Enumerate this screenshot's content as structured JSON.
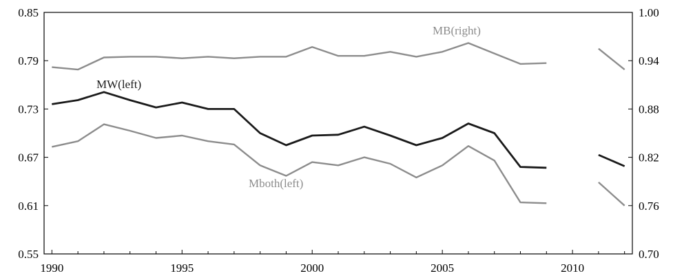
{
  "chart_data": {
    "type": "line",
    "x_ticks": [
      "1990",
      "1995",
      "2000",
      "2005",
      "2010"
    ],
    "x_range": [
      1989.7,
      2012.3
    ],
    "left_axis": {
      "ticks": [
        "0.85",
        "0.79",
        "0.73",
        "0.67",
        "0.61",
        "0.55"
      ],
      "ylim": [
        0.55,
        0.85
      ]
    },
    "right_axis": {
      "ticks": [
        "1.00",
        "0.94",
        "0.88",
        "0.82",
        "0.76",
        "0.70"
      ],
      "ylim": [
        0.7,
        1.0
      ]
    },
    "grid": false,
    "series": [
      {
        "name": "MB(right)",
        "axis": "right",
        "color": "#8c8c8c",
        "segments": [
          {
            "x": [
              1990,
              1991,
              1992,
              1993,
              1994,
              1995,
              1996,
              1997,
              1998,
              1999,
              2000,
              2001,
              2002,
              2003,
              2004,
              2005,
              2006,
              2007,
              2008,
              2009
            ],
            "y": [
              0.932,
              0.929,
              0.944,
              0.945,
              0.945,
              0.943,
              0.945,
              0.943,
              0.945,
              0.945,
              0.957,
              0.946,
              0.946,
              0.951,
              0.945,
              0.951,
              0.962,
              0.949,
              0.936,
              0.937
            ]
          },
          {
            "x": [
              2011,
              2012
            ],
            "y": [
              0.955,
              0.929
            ]
          }
        ]
      },
      {
        "name": "MW(left)",
        "axis": "left",
        "color": "#1a1a1a",
        "segments": [
          {
            "x": [
              1990,
              1991,
              1992,
              1993,
              1994,
              1995,
              1996,
              1997,
              1998,
              1999,
              2000,
              2001,
              2002,
              2003,
              2004,
              2005,
              2006,
              2007,
              2008,
              2009
            ],
            "y": [
              0.736,
              0.741,
              0.751,
              0.741,
              0.732,
              0.738,
              0.73,
              0.73,
              0.7,
              0.685,
              0.697,
              0.698,
              0.708,
              0.697,
              0.685,
              0.694,
              0.712,
              0.7,
              0.658,
              0.657
            ]
          },
          {
            "x": [
              2011,
              2012
            ],
            "y": [
              0.673,
              0.659
            ]
          }
        ]
      },
      {
        "name": "Mboth(left)",
        "axis": "left",
        "color": "#8c8c8c",
        "segments": [
          {
            "x": [
              1990,
              1991,
              1992,
              1993,
              1994,
              1995,
              1996,
              1997,
              1998,
              1999,
              2000,
              2001,
              2002,
              2003,
              2004,
              2005,
              2006,
              2007,
              2008,
              2009
            ],
            "y": [
              0.683,
              0.69,
              0.711,
              0.703,
              0.694,
              0.697,
              0.69,
              0.686,
              0.66,
              0.647,
              0.664,
              0.66,
              0.67,
              0.662,
              0.645,
              0.66,
              0.684,
              0.666,
              0.614,
              0.613
            ]
          },
          {
            "x": [
              2011,
              2012
            ],
            "y": [
              0.639,
              0.61
            ]
          }
        ]
      }
    ],
    "annotations": [
      {
        "series": "MB(right)",
        "text": "MB(right)",
        "color": "#8c8c8c"
      },
      {
        "series": "MW(left)",
        "text": "MW(left)",
        "color": "#1a1a1a"
      },
      {
        "series": "Mboth(left)",
        "text": "Mboth(left)",
        "color": "#8c8c8c"
      }
    ]
  }
}
